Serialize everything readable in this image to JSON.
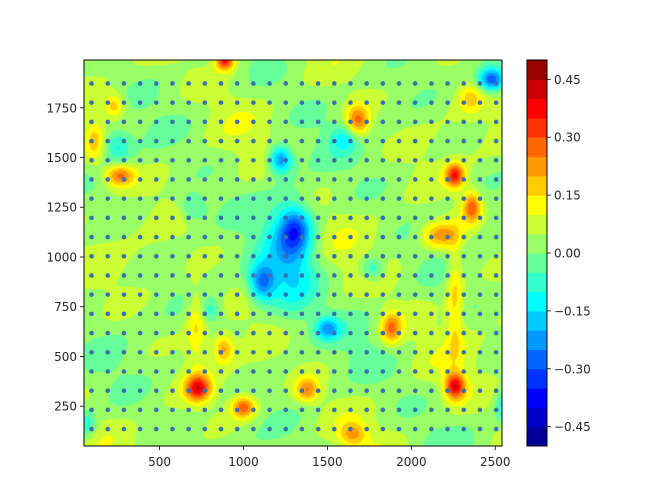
{
  "chart_data": {
    "type": "heatmap",
    "subtype": "filled-contour with scatter points",
    "title": "",
    "xlabel": "",
    "ylabel": "",
    "xlim": [
      50,
      2540
    ],
    "ylim": [
      50,
      1990
    ],
    "x_ticks": [
      500,
      1000,
      1500,
      2000,
      2500
    ],
    "y_ticks": [
      250,
      500,
      750,
      1000,
      1250,
      1500,
      1750
    ],
    "grid": false,
    "colormap": "jet",
    "colorbar": {
      "vmin": -0.5,
      "vmax": 0.5,
      "levels": 20,
      "ticks": [
        -0.45,
        -0.3,
        -0.15,
        0.0,
        0.15,
        0.3,
        0.45
      ],
      "tick_labels": [
        "−0.45",
        "−0.30",
        "−0.15",
        "0.00",
        "0.15",
        "0.30",
        "0.45"
      ]
    },
    "scatter": {
      "color": "#3a6fb0",
      "x_start": 95,
      "x_end": 2505,
      "x_step": 96.4,
      "y_start": 135,
      "y_end": 1900,
      "y_step": 96.5
    },
    "features": [
      {
        "x": 1220,
        "y": 1490,
        "v": -0.3,
        "rx": 70,
        "ry": 70
      },
      {
        "x": 1110,
        "y": 870,
        "v": -0.28,
        "rx": 80,
        "ry": 95
      },
      {
        "x": 1280,
        "y": 1000,
        "v": -0.2,
        "rx": 150,
        "ry": 300
      },
      {
        "x": 1310,
        "y": 1140,
        "v": -0.22,
        "rx": 90,
        "ry": 110
      },
      {
        "x": 1500,
        "y": 640,
        "v": -0.22,
        "rx": 70,
        "ry": 55
      },
      {
        "x": 1770,
        "y": 940,
        "v": -0.15,
        "rx": 70,
        "ry": 60
      },
      {
        "x": 2480,
        "y": 1890,
        "v": -0.35,
        "rx": 80,
        "ry": 60
      },
      {
        "x": 250,
        "y": 1560,
        "v": -0.14,
        "rx": 80,
        "ry": 80
      },
      {
        "x": 60,
        "y": 160,
        "v": -0.14,
        "rx": 60,
        "ry": 70
      },
      {
        "x": 2550,
        "y": 250,
        "v": -0.14,
        "rx": 50,
        "ry": 80
      },
      {
        "x": 1600,
        "y": 1600,
        "v": -0.12,
        "rx": 80,
        "ry": 70
      },
      {
        "x": 700,
        "y": 1250,
        "v": -0.12,
        "rx": 80,
        "ry": 70
      },
      {
        "x": 800,
        "y": 730,
        "v": -0.12,
        "rx": 60,
        "ry": 60
      },
      {
        "x": 890,
        "y": 1990,
        "v": 0.35,
        "rx": 55,
        "ry": 50
      },
      {
        "x": 730,
        "y": 340,
        "v": 0.32,
        "rx": 75,
        "ry": 65
      },
      {
        "x": 1000,
        "y": 245,
        "v": 0.25,
        "rx": 70,
        "ry": 55
      },
      {
        "x": 2260,
        "y": 350,
        "v": 0.33,
        "rx": 60,
        "ry": 65
      },
      {
        "x": 2260,
        "y": 1410,
        "v": 0.3,
        "rx": 55,
        "ry": 60
      },
      {
        "x": 2360,
        "y": 1250,
        "v": 0.26,
        "rx": 55,
        "ry": 80
      },
      {
        "x": 260,
        "y": 1410,
        "v": 0.24,
        "rx": 90,
        "ry": 55
      },
      {
        "x": 1680,
        "y": 1680,
        "v": 0.24,
        "rx": 70,
        "ry": 80
      },
      {
        "x": 1880,
        "y": 640,
        "v": 0.22,
        "rx": 60,
        "ry": 80
      },
      {
        "x": 1380,
        "y": 330,
        "v": 0.2,
        "rx": 70,
        "ry": 60
      },
      {
        "x": 2170,
        "y": 1110,
        "v": 0.2,
        "rx": 110,
        "ry": 70
      },
      {
        "x": 880,
        "y": 540,
        "v": 0.18,
        "rx": 60,
        "ry": 70
      },
      {
        "x": 2260,
        "y": 800,
        "v": 0.14,
        "rx": 50,
        "ry": 300
      },
      {
        "x": 720,
        "y": 650,
        "v": 0.12,
        "rx": 60,
        "ry": 200
      },
      {
        "x": 230,
        "y": 1760,
        "v": 0.16,
        "rx": 60,
        "ry": 60
      },
      {
        "x": 110,
        "y": 1580,
        "v": 0.14,
        "rx": 60,
        "ry": 110
      },
      {
        "x": 1650,
        "y": 110,
        "v": 0.16,
        "rx": 80,
        "ry": 60
      },
      {
        "x": 2350,
        "y": 1800,
        "v": 0.1,
        "rx": 70,
        "ry": 70
      }
    ]
  }
}
